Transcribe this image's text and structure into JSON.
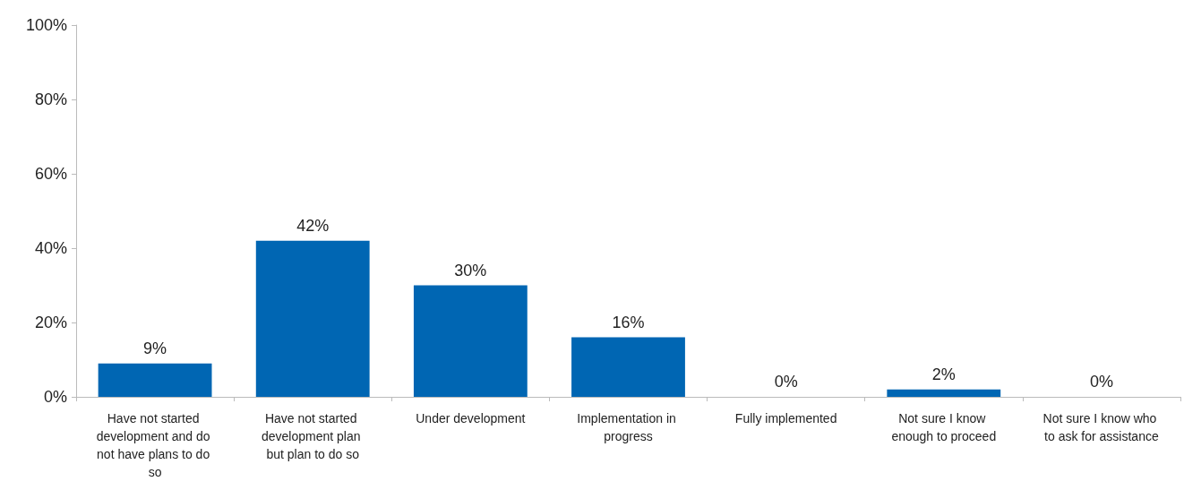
{
  "chart_data": {
    "type": "bar",
    "categories": [
      "Have not started development and do not have plans to do so",
      "Have not started development plan but plan to do so",
      "Under development",
      "Implementation in progress",
      "Fully implemented",
      "Not sure I know enough to proceed",
      "Not sure I know who to ask for assistance"
    ],
    "values": [
      9,
      42,
      30,
      16,
      0,
      2,
      0
    ],
    "value_labels": [
      "9%",
      "42%",
      "30%",
      "16%",
      "0%",
      "2%",
      "0%"
    ],
    "color": "#0066b3",
    "ylim": [
      0,
      100
    ],
    "yticks": [
      {
        "value": 0,
        "label": "0%"
      },
      {
        "value": 20,
        "label": "20%"
      },
      {
        "value": 40,
        "label": "40%"
      },
      {
        "value": 60,
        "label": "60%"
      },
      {
        "value": 80,
        "label": "80%"
      },
      {
        "value": 100,
        "label": "100%"
      }
    ],
    "grid": false
  }
}
